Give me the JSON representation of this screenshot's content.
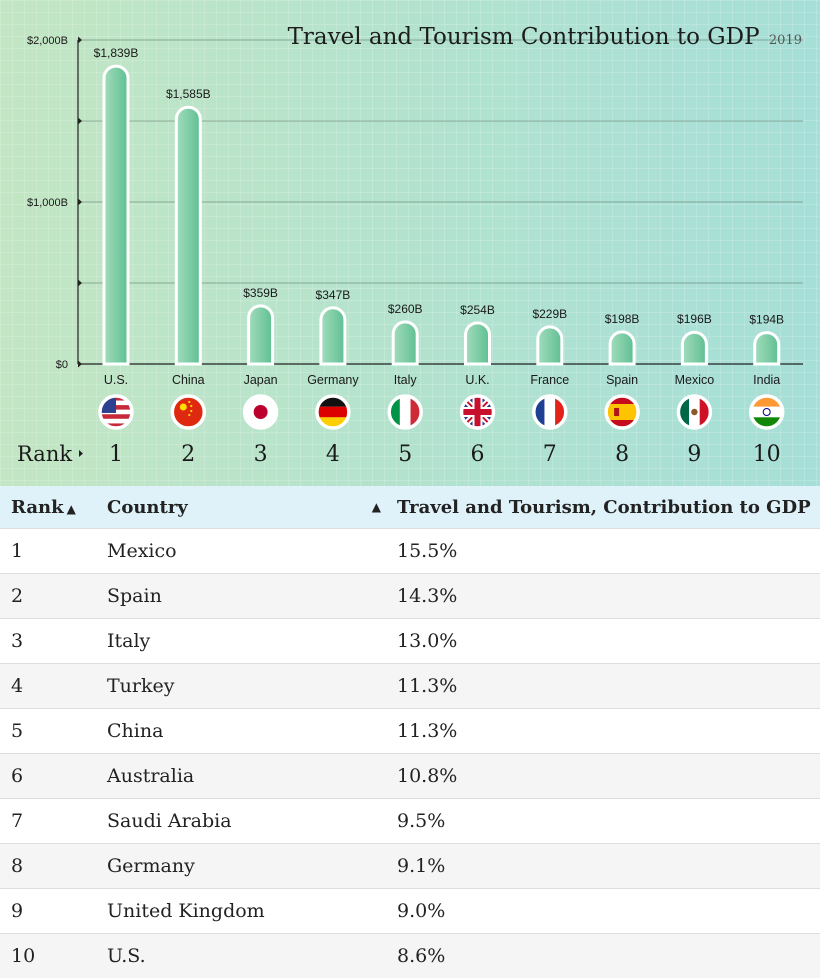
{
  "chart_data": {
    "type": "bar",
    "title": "Travel and Tourism Contribution to GDP",
    "year": "2019",
    "categories": [
      "U.S.",
      "China",
      "Japan",
      "Germany",
      "Italy",
      "U.K.",
      "France",
      "Spain",
      "Mexico",
      "India"
    ],
    "values": [
      1839,
      1585,
      359,
      347,
      260,
      254,
      229,
      198,
      196,
      194
    ],
    "data_labels": [
      "$1,839B",
      "$1,585B",
      "$359B",
      "$347B",
      "$260B",
      "$254B",
      "$229B",
      "$198B",
      "$196B",
      "$194B"
    ],
    "ranks": [
      "1",
      "2",
      "3",
      "4",
      "5",
      "6",
      "7",
      "8",
      "9",
      "10"
    ],
    "rank_label": "Rank",
    "y_tick_labels": [
      "$0",
      "$1,000B",
      "$2,000B"
    ],
    "y_tick_values": [
      0,
      1000,
      2000
    ],
    "ylim": [
      0,
      2000
    ],
    "grid": true,
    "flags": [
      "us-flag",
      "china-flag",
      "japan-flag",
      "germany-flag",
      "italy-flag",
      "uk-flag",
      "france-flag",
      "spain-flag",
      "mexico-flag",
      "india-flag"
    ],
    "colors": {
      "bar_light": "#a2dcbc",
      "bar_dark": "#5fbf92",
      "bar_outline": "#ffffff"
    }
  },
  "table": {
    "headers": [
      "Rank",
      "Country",
      "Travel and Tourism, Contribution to GDP"
    ],
    "rows": [
      [
        "1",
        "Mexico",
        "15.5%"
      ],
      [
        "2",
        "Spain",
        "14.3%"
      ],
      [
        "3",
        "Italy",
        "13.0%"
      ],
      [
        "4",
        "Turkey",
        "11.3%"
      ],
      [
        "5",
        "China",
        "11.3%"
      ],
      [
        "6",
        "Australia",
        "10.8%"
      ],
      [
        "7",
        "Saudi Arabia",
        "9.5%"
      ],
      [
        "8",
        "Germany",
        "9.1%"
      ],
      [
        "9",
        "United Kingdom",
        "9.0%"
      ],
      [
        "10",
        "U.S.",
        "8.6%"
      ]
    ]
  }
}
